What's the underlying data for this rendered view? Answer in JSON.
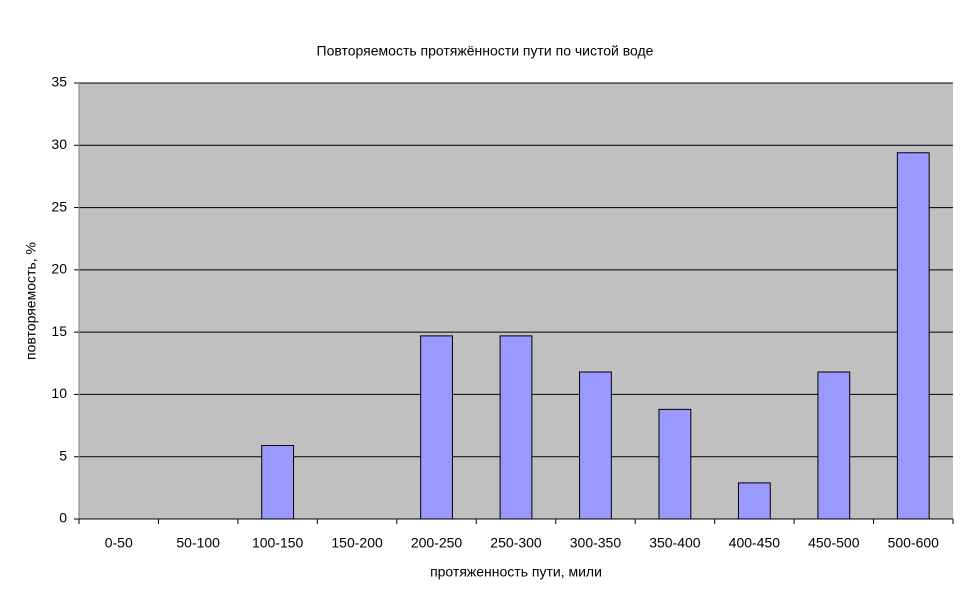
{
  "chart_data": {
    "type": "bar",
    "title": "Повторяемость протяжённости пути по чистой воде",
    "x_label": "протяженность пути, мили",
    "y_label": "повторяемость, %",
    "categories": [
      "0-50",
      "50-100",
      "100-150",
      "150-200",
      "200-250",
      "250-300",
      "300-350",
      "350-400",
      "400-450",
      "450-500",
      "500-600"
    ],
    "values": [
      0,
      0,
      5.9,
      0,
      14.7,
      14.7,
      11.8,
      8.8,
      2.9,
      11.8,
      29.4
    ],
    "color": "#9999ff",
    "ylim": [
      0,
      35
    ],
    "yticks": [
      0,
      5,
      10,
      15,
      20,
      25,
      30,
      35
    ],
    "grid": true
  }
}
